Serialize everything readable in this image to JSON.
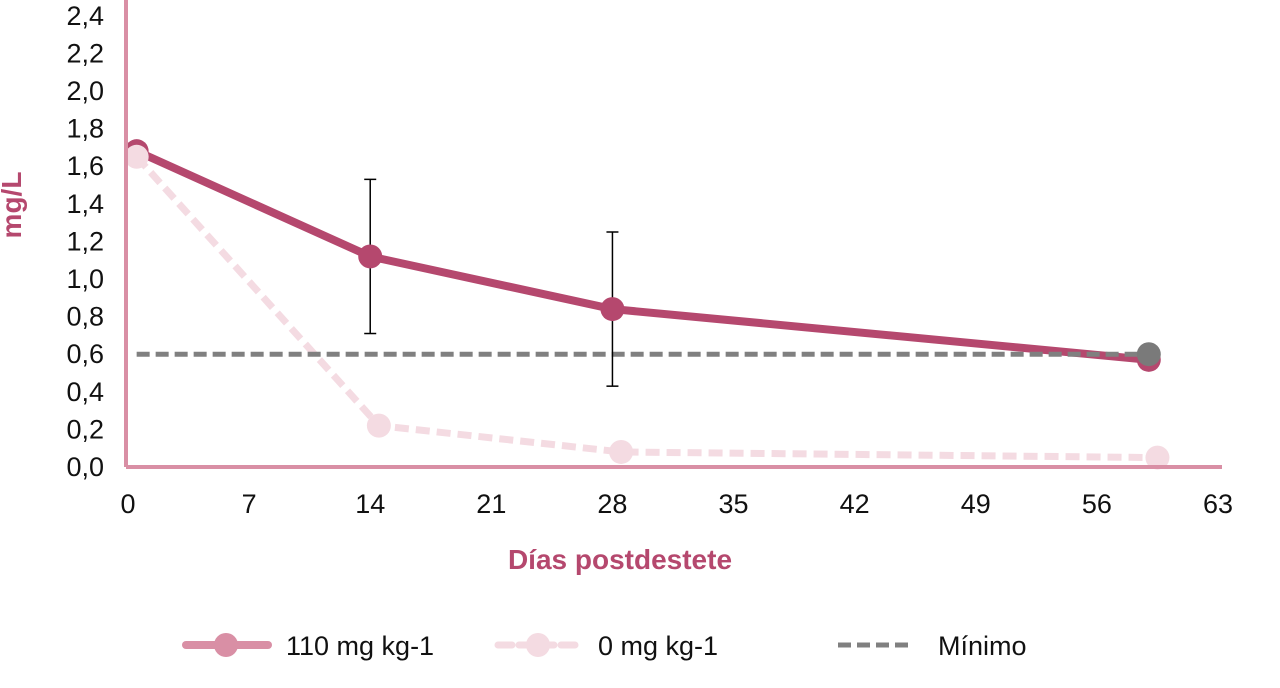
{
  "chart_data": {
    "type": "line",
    "title": "",
    "xlabel": "Días postdestete",
    "ylabel": "mg/L",
    "xlim": [
      0,
      63
    ],
    "ylim": [
      0,
      2.4
    ],
    "x_ticks": [
      0,
      7,
      14,
      21,
      28,
      35,
      42,
      49,
      56,
      63
    ],
    "x_tick_labels": [
      "0",
      "7",
      "14",
      "21",
      "28",
      "35",
      "42",
      "49",
      "56",
      "63"
    ],
    "y_ticks": [
      0,
      0.2,
      0.4,
      0.6,
      0.8,
      1.0,
      1.2,
      1.4,
      1.6,
      1.8,
      2.0,
      2.2,
      2.4
    ],
    "y_tick_labels": [
      "0,0",
      "0,2",
      "0,4",
      "0,6",
      "0,8",
      "1,0",
      "1,2",
      "1,4",
      "1,6",
      "1,8",
      "2,0",
      "2,2",
      "2,4"
    ],
    "grid": false,
    "legend_position": "bottom",
    "series": [
      {
        "name": "110 mg kg-1",
        "style": "solid",
        "color": "#b5486e",
        "legend_color": "#d98fa5",
        "x": [
          0.5,
          14,
          28,
          59
        ],
        "y": [
          1.68,
          1.12,
          0.84,
          0.57
        ],
        "error": [
          null,
          0.41,
          0.41,
          null
        ],
        "point_colors": [
          "#b5486e",
          "#b5486e",
          "#b5486e",
          "#b5486e"
        ]
      },
      {
        "name": "0 mg kg-1",
        "style": "dashed",
        "color": "#f4dbe2",
        "legend_color": "#f4dbe2",
        "x": [
          0.5,
          14.5,
          28.5,
          59.5
        ],
        "y": [
          1.65,
          0.22,
          0.08,
          0.05
        ],
        "error": [
          null,
          null,
          null,
          null
        ],
        "point_colors": [
          "#f4dbe2",
          "#f4dbe2",
          "#f4dbe2",
          "#f4dbe2"
        ]
      },
      {
        "name": "Mínimo",
        "style": "dashed",
        "color": "#808080",
        "legend_color": "#808080",
        "x": [
          0.5,
          59
        ],
        "y": [
          0.6,
          0.6
        ],
        "error": [
          null,
          null
        ],
        "point_colors": [
          null,
          "#7a7a7a"
        ]
      }
    ],
    "colors": {
      "axis": "#d98fa5",
      "axis_title": "#b5486e",
      "error_bar": "#000000"
    }
  }
}
